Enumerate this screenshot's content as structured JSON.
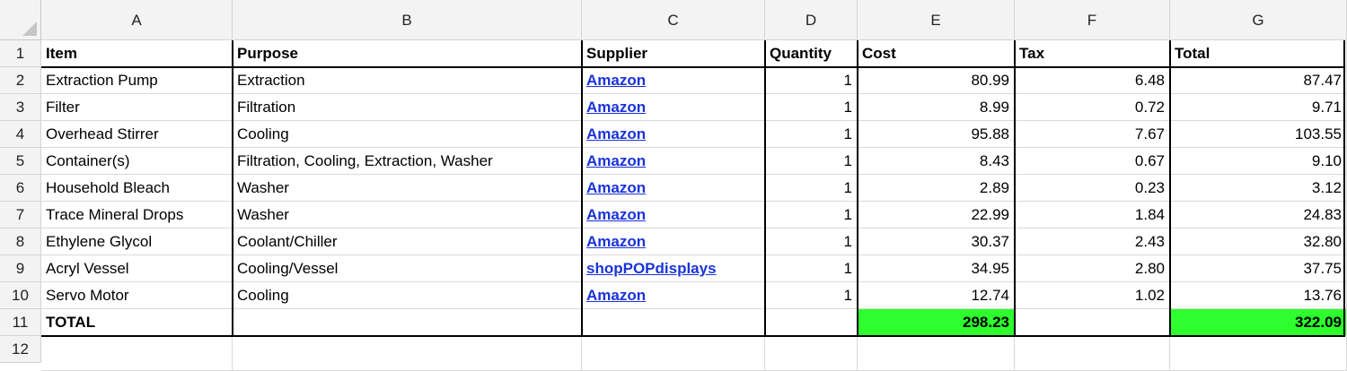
{
  "columns": [
    "A",
    "B",
    "C",
    "D",
    "E",
    "F",
    "G"
  ],
  "row_numbers": [
    "1",
    "2",
    "3",
    "4",
    "5",
    "6",
    "7",
    "8",
    "9",
    "10",
    "11",
    "12"
  ],
  "header_row": {
    "item": "Item",
    "purpose": "Purpose",
    "supplier": "Supplier",
    "quantity": "Quantity",
    "cost": "Cost",
    "tax": "Tax",
    "total": "Total"
  },
  "rows": [
    {
      "item": "Extraction Pump",
      "purpose": "Extraction",
      "supplier": "Amazon",
      "quantity": "1",
      "cost": "80.99",
      "tax": "6.48",
      "total": "87.47"
    },
    {
      "item": "Filter",
      "purpose": "Filtration",
      "supplier": "Amazon",
      "quantity": "1",
      "cost": "8.99",
      "tax": "0.72",
      "total": "9.71"
    },
    {
      "item": "Overhead Stirrer",
      "purpose": "Cooling",
      "supplier": "Amazon",
      "quantity": "1",
      "cost": "95.88",
      "tax": "7.67",
      "total": "103.55"
    },
    {
      "item": "Container(s)",
      "purpose": "Filtration, Cooling, Extraction, Washer",
      "supplier": "Amazon",
      "quantity": "1",
      "cost": "8.43",
      "tax": "0.67",
      "total": "9.10"
    },
    {
      "item": "Household Bleach",
      "purpose": "Washer",
      "supplier": "Amazon",
      "quantity": "1",
      "cost": "2.89",
      "tax": "0.23",
      "total": "3.12"
    },
    {
      "item": "Trace Mineral Drops",
      "purpose": "Washer",
      "supplier": "Amazon",
      "quantity": "1",
      "cost": "22.99",
      "tax": "1.84",
      "total": "24.83"
    },
    {
      "item": "Ethylene Glycol",
      "purpose": "Coolant/Chiller",
      "supplier": "Amazon",
      "quantity": "1",
      "cost": "30.37",
      "tax": "2.43",
      "total": "32.80"
    },
    {
      "item": "Acryl Vessel",
      "purpose": "Cooling/Vessel",
      "supplier": "shopPOPdisplays",
      "quantity": "1",
      "cost": "34.95",
      "tax": "2.80",
      "total": "37.75"
    },
    {
      "item": "Servo Motor",
      "purpose": "Cooling",
      "supplier": "Amazon",
      "quantity": "1",
      "cost": "12.74",
      "tax": "1.02",
      "total": "13.76"
    }
  ],
  "total_row": {
    "label": "TOTAL",
    "cost": "298.23",
    "total": "322.09"
  },
  "colors": {
    "highlight": "#2efe2e",
    "link": "#1a33d9",
    "header_bg": "#f3f3f3"
  }
}
